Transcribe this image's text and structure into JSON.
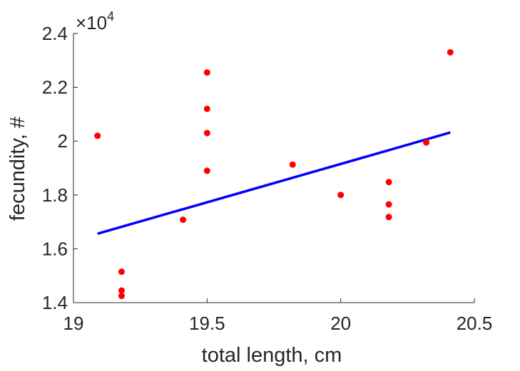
{
  "chart_data": {
    "type": "scatter",
    "xlabel": "total length, cm",
    "ylabel": "fecundity, #",
    "xlim": [
      19,
      20.5
    ],
    "ylim": [
      14000,
      24000
    ],
    "x_ticks": [
      19,
      19.5,
      20,
      20.5
    ],
    "y_ticks": [
      14000,
      16000,
      18000,
      20000,
      22000,
      24000
    ],
    "x_tick_labels": [
      "19",
      "19.5",
      "20",
      "20.5"
    ],
    "y_tick_labels": [
      "1.4",
      "1.6",
      "1.8",
      "2",
      "2.2",
      "2.4"
    ],
    "y_exponent_label": {
      "base": "×10",
      "power": "4"
    },
    "grid": false,
    "series": [
      {
        "type": "scatter",
        "color": "#ff0000",
        "points": [
          [
            19.09,
            20200
          ],
          [
            19.18,
            15150
          ],
          [
            19.18,
            14450
          ],
          [
            19.18,
            14250
          ],
          [
            19.41,
            17080
          ],
          [
            19.5,
            22550
          ],
          [
            19.5,
            21200
          ],
          [
            19.5,
            20300
          ],
          [
            19.5,
            18900
          ],
          [
            19.82,
            19130
          ],
          [
            20.0,
            18000
          ],
          [
            20.18,
            18480
          ],
          [
            20.18,
            17650
          ],
          [
            20.18,
            17180
          ],
          [
            20.32,
            19950
          ],
          [
            20.41,
            23300
          ]
        ]
      },
      {
        "type": "line",
        "color": "#0000ff",
        "points": [
          [
            19.09,
            16560
          ],
          [
            20.41,
            20320
          ]
        ]
      }
    ]
  }
}
